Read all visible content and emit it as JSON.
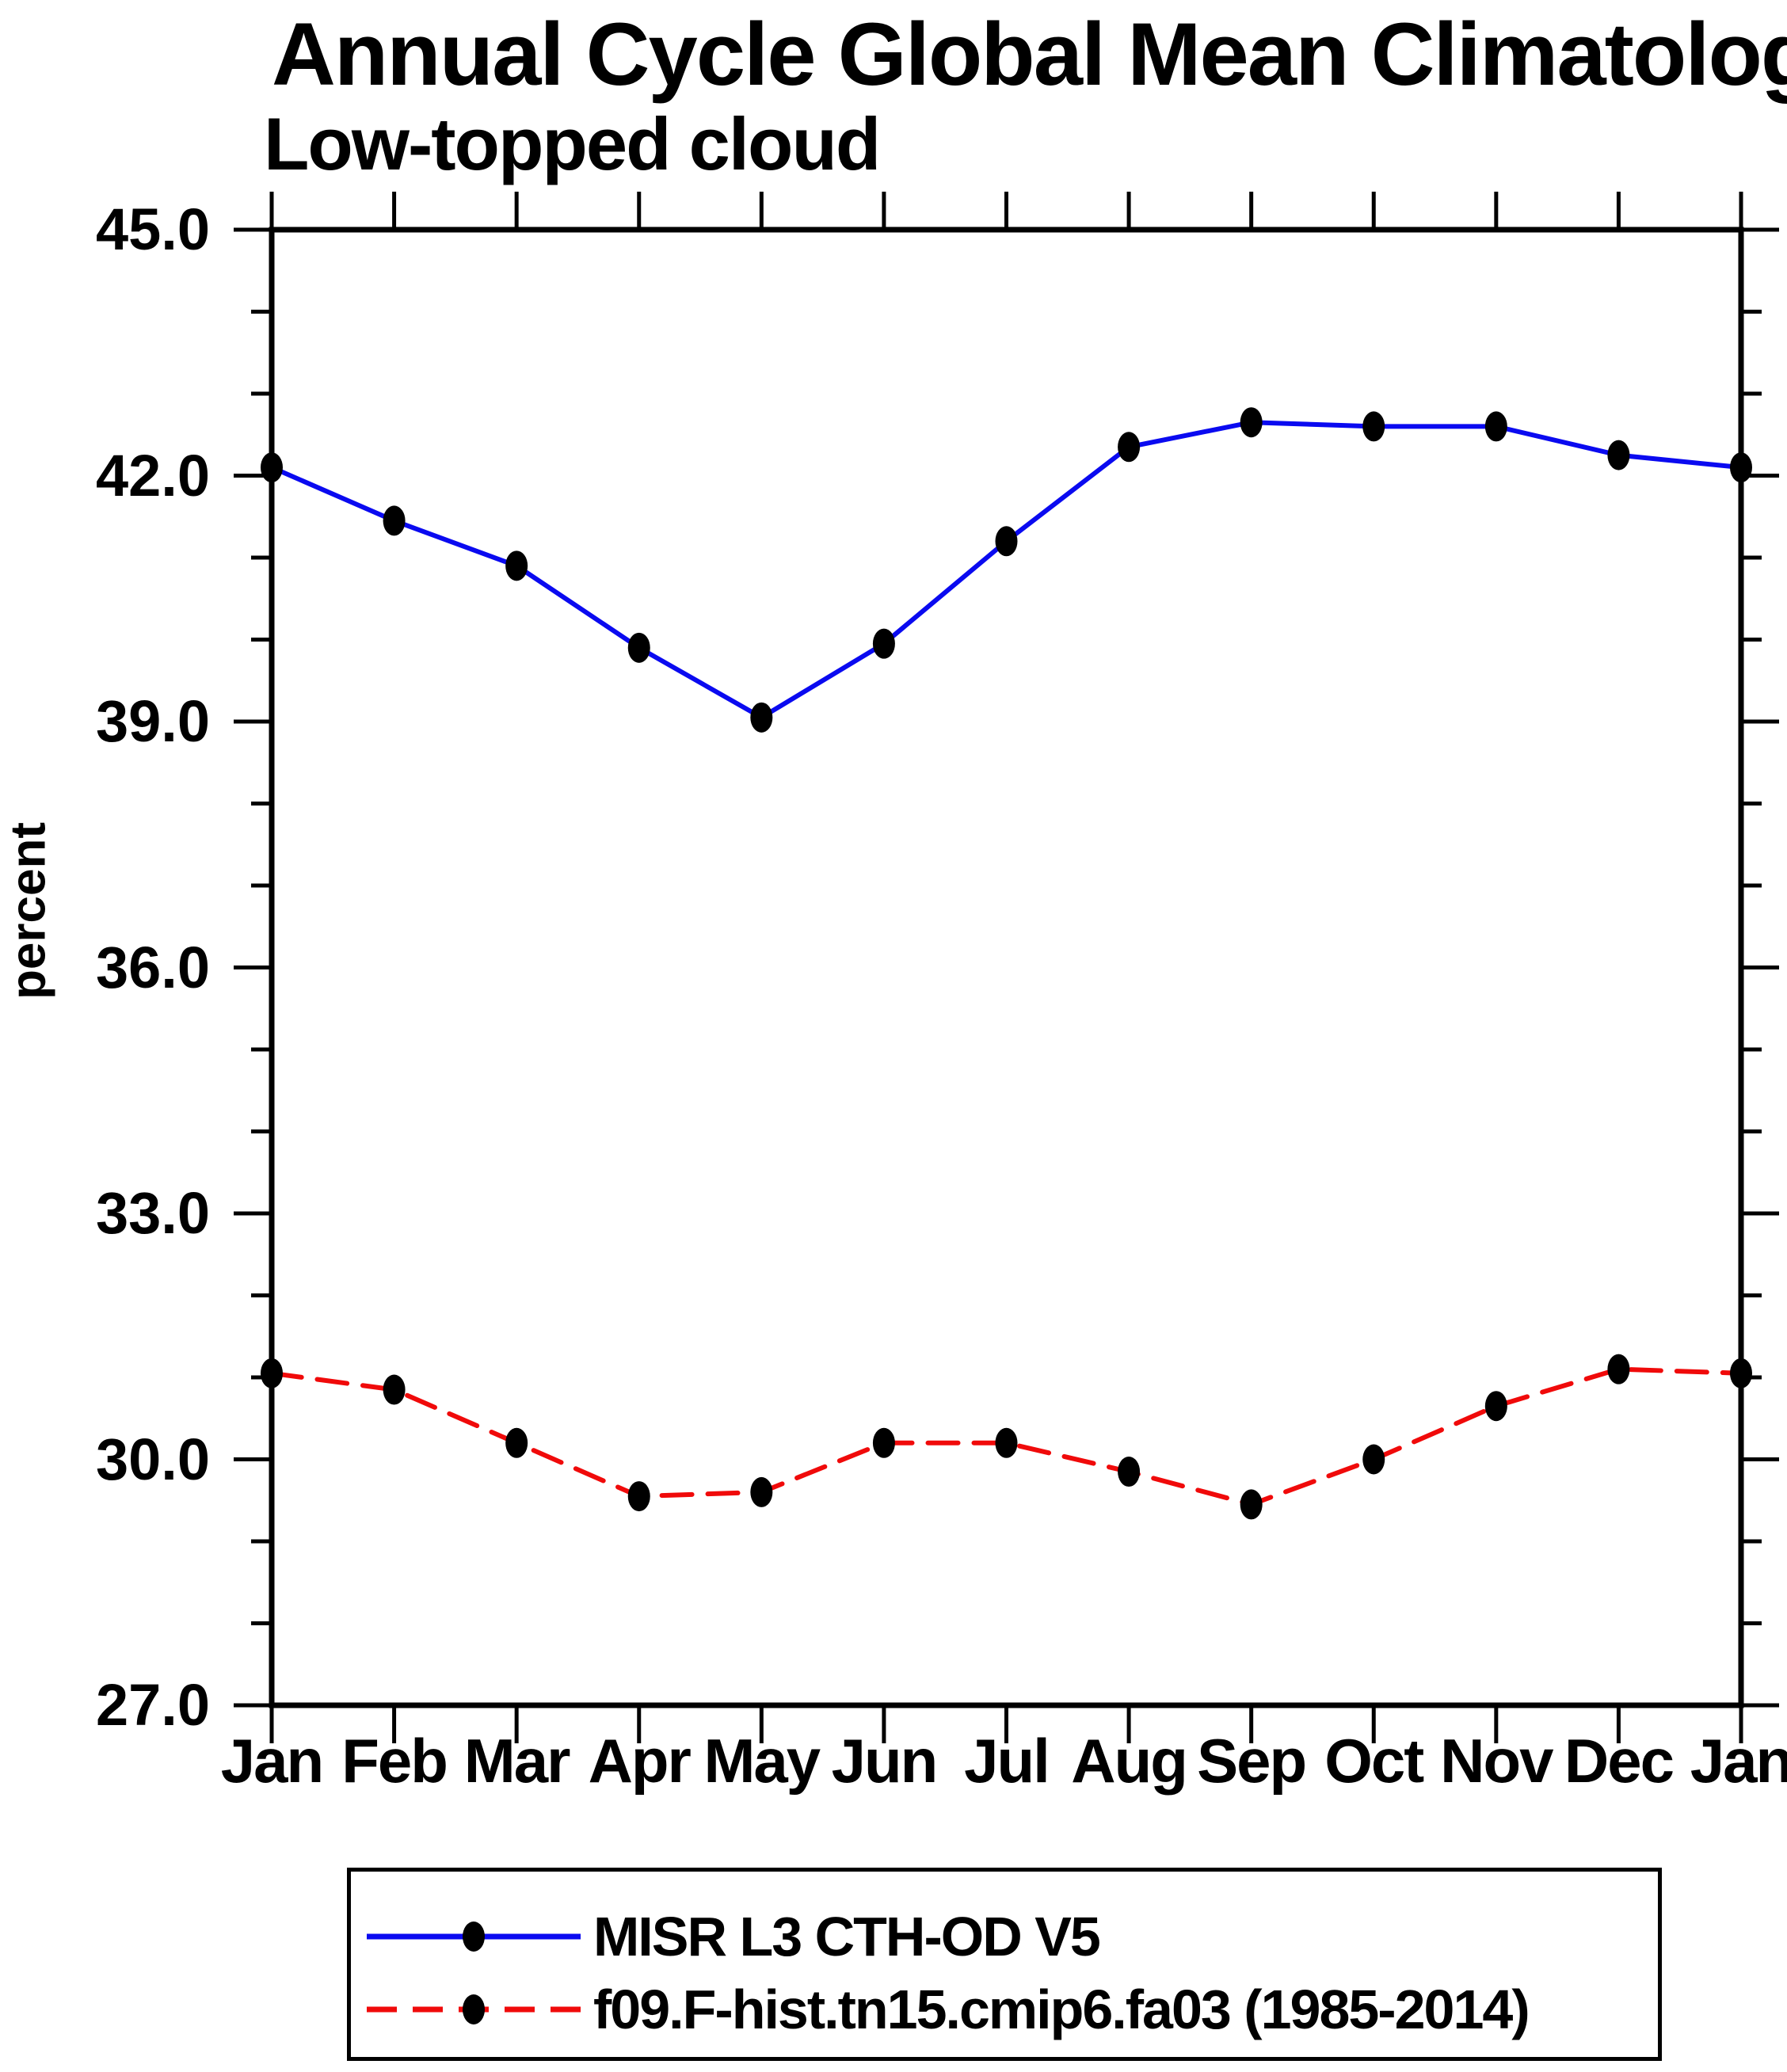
{
  "colors": {
    "foreground": "#000000",
    "background": "#ffffff",
    "series_obs": "#0a0af0",
    "series_model": "#f00a0a",
    "marker": "#000000"
  },
  "chart_data": {
    "type": "line",
    "title": "Annual Cycle Global Mean Climatology",
    "subtitle": "Low-topped cloud",
    "ylabel": "percent",
    "xlabel": "",
    "x_categories": [
      "Jan",
      "Feb",
      "Mar",
      "Apr",
      "May",
      "Jun",
      "Jul",
      "Aug",
      "Sep",
      "Oct",
      "Nov",
      "Dec",
      "Jan"
    ],
    "ylim": [
      27.0,
      45.0
    ],
    "ytick_major_values": [
      27,
      30,
      33,
      36,
      39,
      42,
      45
    ],
    "ytick_labels": [
      "27.0",
      "30.0",
      "33.0",
      "36.0",
      "39.0",
      "42.0",
      "45.0"
    ],
    "ytick_minor_step": 1.0,
    "grid": "off",
    "legend_position": "bottom",
    "series": [
      {
        "name": "MISR L3 CTH-OD V5",
        "color": "#0a0af0",
        "line_style": "solid",
        "marker": "black-ellipse",
        "values": [
          42.1,
          41.45,
          40.9,
          39.9,
          39.05,
          39.95,
          41.2,
          42.35,
          42.65,
          42.6,
          42.6,
          42.25,
          42.1
        ]
      },
      {
        "name": "f09.F-hist.tn15.cmip6.fa03 (1985-2014)",
        "color": "#f00a0a",
        "line_style": "dashed",
        "marker": "black-ellipse",
        "values": [
          31.05,
          30.85,
          30.2,
          29.55,
          29.6,
          30.2,
          30.2,
          29.85,
          29.45,
          30.0,
          30.65,
          31.1,
          31.05
        ]
      }
    ]
  }
}
